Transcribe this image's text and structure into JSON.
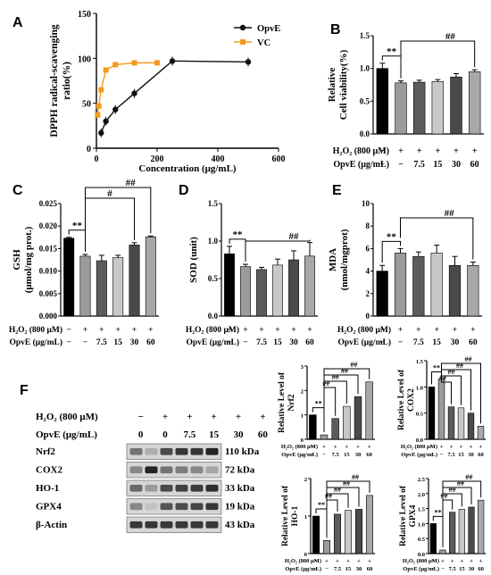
{
  "panel_letters": [
    "A",
    "B",
    "C",
    "D",
    "E",
    "F"
  ],
  "chart_data": [
    {
      "id": "A",
      "type": "line",
      "xlabel": "Concentration (μg/mL)",
      "ylabel": "DPPH radical-scavenging ratio(%)",
      "xlim": [
        0,
        600
      ],
      "ylim": [
        0,
        150
      ],
      "xticks": [
        "0",
        "200",
        "400",
        "600"
      ],
      "yticks": [
        "0",
        "50",
        "100",
        "150"
      ],
      "legend_position": "top-right",
      "series": [
        {
          "name": "OpvE",
          "color": "#111111",
          "marker": "circle",
          "x": [
            15.6,
            31.25,
            62.5,
            125,
            250,
            500
          ],
          "y": [
            17,
            30,
            43,
            61,
            97,
            96
          ]
        },
        {
          "name": "VC",
          "color": "#f39a1e",
          "marker": "square",
          "x": [
            3.9,
            7.8,
            15.6,
            31.25,
            62.5,
            125,
            200
          ],
          "y": [
            37,
            47,
            65,
            87,
            93,
            95,
            95
          ]
        }
      ]
    },
    {
      "id": "B",
      "type": "bar",
      "ylabel": "Relative Cell viability(%)",
      "ylim": [
        0,
        1.5
      ],
      "yticks": [
        "0.0",
        "0.5",
        "1.0",
        "1.5"
      ],
      "values": [
        1.0,
        0.78,
        0.79,
        0.8,
        0.87,
        0.95
      ],
      "errors": [
        0.08,
        0.03,
        0.03,
        0.03,
        0.05,
        0.03
      ],
      "annotations": [
        "**",
        "##"
      ]
    },
    {
      "id": "C",
      "type": "bar",
      "ylabel": "GSH (μmol/mg prot.)",
      "ylim": [
        0,
        0.025
      ],
      "yticks": [
        "0.000",
        "0.005",
        "0.010",
        "0.015",
        "0.020",
        "0.025"
      ],
      "values": [
        0.0173,
        0.0133,
        0.0123,
        0.013,
        0.0158,
        0.0176
      ],
      "errors": [
        0.0002,
        0.0004,
        0.0012,
        0.0005,
        0.0005,
        0.0002
      ],
      "annotations": [
        "**",
        "#",
        "##"
      ]
    },
    {
      "id": "D",
      "type": "bar",
      "ylabel": "SOD (unit)",
      "ylim": [
        0,
        1.5
      ],
      "yticks": [
        "0.0",
        "0.5",
        "1.0",
        "1.5"
      ],
      "values": [
        0.83,
        0.66,
        0.62,
        0.68,
        0.75,
        0.8
      ],
      "errors": [
        0.1,
        0.03,
        0.03,
        0.08,
        0.12,
        0.18
      ],
      "annotations": [
        "**",
        "##"
      ]
    },
    {
      "id": "E",
      "type": "bar",
      "ylabel": "MDA (nmol/mgprot)",
      "ylim": [
        0,
        10
      ],
      "yticks": [
        "0",
        "2",
        "4",
        "6",
        "8",
        "10"
      ],
      "values": [
        4.0,
        5.6,
        5.3,
        5.6,
        4.5,
        4.5
      ],
      "errors": [
        0.5,
        0.4,
        0.4,
        0.7,
        0.8,
        0.3
      ],
      "annotations": [
        "**",
        "##"
      ]
    },
    {
      "id": "Nrf2",
      "type": "bar",
      "ylabel": "Relative Level of Nrf2",
      "ylim": [
        0,
        3
      ],
      "yticks": [
        "0",
        "1",
        "2",
        "3"
      ],
      "values": [
        1.0,
        0.18,
        0.85,
        1.35,
        1.75,
        2.35
      ],
      "annotations": [
        "**",
        "##",
        "##",
        "##",
        "##"
      ]
    },
    {
      "id": "COX2",
      "type": "bar",
      "ylabel": "Relative Level of COX2",
      "ylim": [
        0,
        1.5
      ],
      "yticks": [
        "0.0",
        "0.5",
        "1.0",
        "1.5"
      ],
      "values": [
        1.0,
        1.15,
        0.62,
        0.6,
        0.5,
        0.25
      ],
      "annotations": [
        "**",
        "##",
        "##",
        "##",
        "##"
      ]
    },
    {
      "id": "HO-1",
      "type": "bar",
      "ylabel": "Relative Level of HO-1",
      "ylim": [
        0,
        2
      ],
      "yticks": [
        "0",
        "1",
        "2"
      ],
      "values": [
        1.0,
        0.35,
        1.05,
        1.15,
        1.18,
        1.55
      ],
      "annotations": [
        "**",
        "##",
        "##",
        "##",
        "##"
      ]
    },
    {
      "id": "GPX4",
      "type": "bar",
      "ylabel": "Relative Level of GPX4",
      "ylim": [
        0,
        2.5
      ],
      "yticks": [
        "0.0",
        "0.5",
        "1.0",
        "1.5",
        "2.0",
        "2.5"
      ],
      "values": [
        1.0,
        0.12,
        1.38,
        1.48,
        1.55,
        1.78
      ],
      "annotations": [
        "**",
        "##",
        "##",
        "##",
        "##"
      ]
    }
  ],
  "bar_colors": [
    "#000000",
    "#9b9b9b",
    "#5c5c5c",
    "#c8c8c8",
    "#4a4a4a",
    "#a8a8a8"
  ],
  "conditions": {
    "h2o2_label": "H₂O₂ (800 μM)",
    "opve_label": "OpvE (μg/mL)",
    "h2o2": [
      "−",
      "+",
      "+",
      "+",
      "+",
      "+"
    ],
    "opve": [
      "−",
      "−",
      "7.5",
      "15",
      "30",
      "60"
    ]
  },
  "western": {
    "h2o2_label": "H₂O₂ (800 μM)",
    "opve_label": "OpvE (μg/mL)",
    "h2o2": [
      "−",
      "+",
      "+",
      "+",
      "+",
      "+"
    ],
    "opve": [
      "0",
      "0",
      "7.5",
      "15",
      "30",
      "60"
    ],
    "bands": [
      {
        "protein": "Nrf2",
        "size": "110 kDa"
      },
      {
        "protein": "COX2",
        "size": "72 kDa"
      },
      {
        "protein": "HO-1",
        "size": "33 kDa"
      },
      {
        "protein": "GPX4",
        "size": "19 kDa"
      },
      {
        "protein": "β-Actin",
        "size": "43 kDa"
      }
    ]
  }
}
